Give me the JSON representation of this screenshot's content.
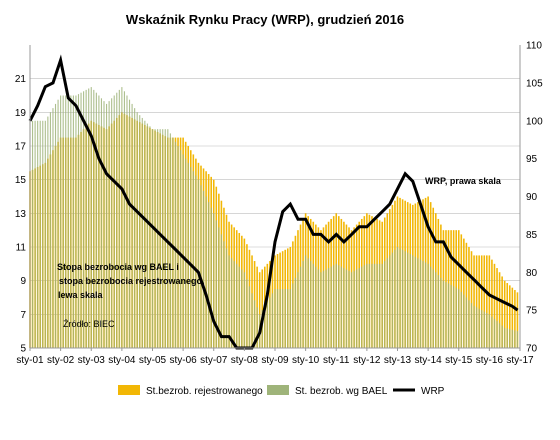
{
  "chart_data": {
    "type": "bar",
    "title": "Wskaźnik Rynku Pracy (WRP), grudzień 2016",
    "xlabel": "",
    "ylabel_left": "",
    "ylabel_right": "",
    "ylim_left": [
      5,
      23
    ],
    "ylim_right": [
      70,
      110
    ],
    "yticks_left": [
      "5",
      "7",
      "9",
      "11",
      "13",
      "15",
      "17",
      "19",
      "21"
    ],
    "yticks_right": [
      "70",
      "75",
      "80",
      "85",
      "90",
      "95",
      "100",
      "105",
      "110"
    ],
    "x_ticks": [
      "sty-01",
      "sty-02",
      "sty-03",
      "sty-04",
      "sty-05",
      "sty-06",
      "sty-07",
      "sty-08",
      "sty-09",
      "sty-10",
      "sty-11",
      "sty-12",
      "sty-13",
      "sty-14",
      "sty-15",
      "sty-16",
      "sty-17"
    ],
    "x_tick_years": [
      2001,
      2002,
      2003,
      2004,
      2005,
      2006,
      2007,
      2008,
      2009,
      2010,
      2011,
      2012,
      2013,
      2014,
      2015,
      2016,
      2017
    ],
    "grid": "horizontal",
    "legend_position": "bottom",
    "colors": {
      "registered": "#f2b705",
      "bael": "#9fb47a",
      "wrp": "#000000",
      "grid": "#bdbdbd"
    },
    "series": [
      {
        "name": "St.bezrob. rejestrowanego",
        "kind": "bar",
        "axis": "left",
        "x": [
          2001.0,
          2001.5,
          2002.0,
          2002.5,
          2003.0,
          2003.5,
          2004.0,
          2004.5,
          2005.0,
          2005.5,
          2006.0,
          2006.5,
          2007.0,
          2007.5,
          2008.0,
          2008.5,
          2009.0,
          2009.5,
          2010.0,
          2010.5,
          2011.0,
          2011.5,
          2012.0,
          2012.5,
          2013.0,
          2013.5,
          2014.0,
          2014.5,
          2015.0,
          2015.5,
          2016.0,
          2016.5,
          2016.92
        ],
        "values": [
          15.5,
          16.0,
          17.5,
          17.5,
          18.5,
          18.0,
          19.0,
          18.5,
          18.0,
          17.5,
          17.5,
          16.0,
          15.0,
          12.5,
          11.5,
          9.5,
          10.5,
          11.0,
          13.0,
          12.0,
          13.0,
          12.0,
          13.0,
          12.5,
          14.0,
          13.5,
          14.0,
          12.0,
          12.0,
          10.5,
          10.5,
          9.0,
          8.3
        ]
      },
      {
        "name": "St. bezrob. wg BAEL",
        "kind": "bar",
        "axis": "left",
        "x": [
          2001.0,
          2001.5,
          2002.0,
          2002.5,
          2003.0,
          2003.5,
          2004.0,
          2004.5,
          2005.0,
          2005.5,
          2006.0,
          2006.5,
          2007.0,
          2007.5,
          2008.0,
          2008.5,
          2009.0,
          2009.5,
          2010.0,
          2010.5,
          2011.0,
          2011.5,
          2012.0,
          2012.5,
          2013.0,
          2013.5,
          2014.0,
          2014.5,
          2015.0,
          2015.5,
          2016.0,
          2016.5,
          2016.92
        ],
        "values": [
          18.5,
          18.5,
          20.0,
          20.0,
          20.5,
          19.5,
          20.5,
          19.0,
          18.0,
          18.0,
          16.5,
          15.0,
          13.0,
          10.5,
          9.5,
          7.0,
          8.5,
          8.5,
          10.5,
          9.5,
          10.0,
          9.5,
          10.0,
          10.0,
          11.0,
          10.5,
          10.0,
          9.0,
          8.5,
          7.5,
          7.0,
          6.2,
          6.0
        ]
      },
      {
        "name": "WRP",
        "kind": "line",
        "axis": "right",
        "x": [
          2001.0,
          2001.25,
          2001.5,
          2001.75,
          2002.0,
          2002.25,
          2002.5,
          2002.75,
          2003.0,
          2003.25,
          2003.5,
          2003.75,
          2004.0,
          2004.25,
          2004.5,
          2004.75,
          2005.0,
          2005.25,
          2005.5,
          2005.75,
          2006.0,
          2006.25,
          2006.5,
          2006.75,
          2007.0,
          2007.25,
          2007.5,
          2007.75,
          2008.0,
          2008.25,
          2008.5,
          2008.75,
          2009.0,
          2009.25,
          2009.5,
          2009.75,
          2010.0,
          2010.25,
          2010.5,
          2010.75,
          2011.0,
          2011.25,
          2011.5,
          2011.75,
          2012.0,
          2012.25,
          2012.5,
          2012.75,
          2013.0,
          2013.25,
          2013.5,
          2013.75,
          2014.0,
          2014.25,
          2014.5,
          2014.75,
          2015.0,
          2015.25,
          2015.5,
          2015.75,
          2016.0,
          2016.25,
          2016.5,
          2016.75,
          2016.92
        ],
        "values": [
          100.0,
          102.0,
          104.5,
          105.0,
          108.0,
          103.0,
          102.0,
          100.0,
          98.0,
          95.0,
          93.0,
          92.0,
          91.0,
          89.0,
          88.0,
          87.0,
          86.0,
          85.0,
          84.0,
          83.0,
          82.0,
          81.0,
          80.0,
          77.0,
          73.5,
          71.5,
          71.5,
          70.0,
          70.0,
          70.0,
          72.0,
          77.0,
          84.0,
          88.0,
          89.0,
          87.0,
          87.0,
          85.0,
          85.0,
          84.0,
          85.0,
          84.0,
          85.0,
          86.0,
          86.0,
          87.0,
          88.0,
          89.0,
          91.0,
          93.0,
          92.0,
          89.0,
          86.0,
          84.0,
          84.0,
          82.0,
          81.0,
          80.0,
          79.0,
          78.0,
          77.0,
          76.5,
          76.0,
          75.5,
          75.0
        ]
      }
    ],
    "annotations": {
      "wrp_label": "WRP, prawa skala",
      "unemployment_label": [
        "Stopa bezrobocia wg BAEL i",
        "stopa bezrobocia rejestrowanego,",
        "lewa skala"
      ],
      "source": "Źródło: BIEC"
    }
  }
}
